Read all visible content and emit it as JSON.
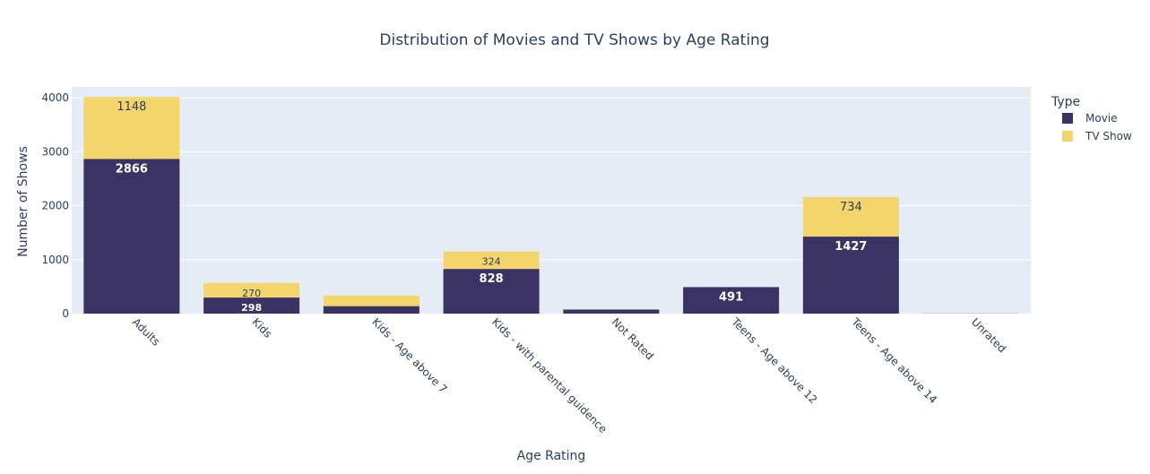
{
  "chart_data": {
    "type": "bar",
    "stacked": true,
    "title": "Distribution of Movies and TV Shows by Age Rating",
    "xlabel": "Age Rating",
    "ylabel": "Number of Shows",
    "categories": [
      "Adults",
      "Kids",
      "Kids - Age above 7",
      "Kids - with parental guidence",
      "Not Rated",
      "Teens - Age above 12",
      "Teens - Age above 14",
      "Unrated"
    ],
    "series": [
      {
        "name": "Movie",
        "color": "#3b3363",
        "values": [
          2866,
          298,
          139,
          828,
          75,
          491,
          1427,
          3
        ],
        "labels": [
          "2866",
          "298",
          "",
          "828",
          "",
          "491",
          "1427",
          ""
        ]
      },
      {
        "name": "TV Show",
        "color": "#f4d56b",
        "values": [
          1148,
          270,
          195,
          324,
          5,
          0,
          734,
          1
        ],
        "labels": [
          "1148",
          "270",
          "",
          "324",
          "",
          "",
          "734",
          ""
        ]
      }
    ],
    "ylim": [
      0,
      4200
    ],
    "yticks": [
      0,
      1000,
      2000,
      3000,
      4000
    ],
    "grid": true,
    "legend": {
      "title": "Type",
      "position": "top-right"
    },
    "colors": {
      "plot_bg": "#e5ecf6",
      "grid": "#ffffff",
      "text": "#2a3f5f"
    }
  }
}
